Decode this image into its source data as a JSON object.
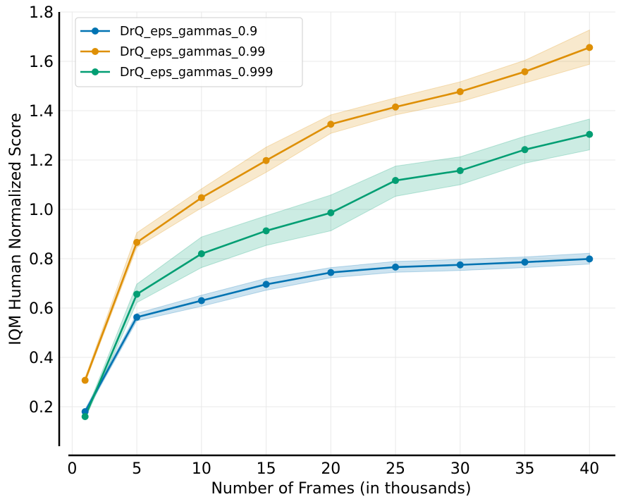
{
  "chart_data": {
    "type": "line",
    "title": "",
    "xlabel": "Number of Frames (in thousands)",
    "ylabel": "IQM Human Normalized Score",
    "xlim": [
      -1,
      42
    ],
    "ylim": [
      0.04,
      1.8
    ],
    "xticks": [
      0,
      5,
      10,
      15,
      20,
      25,
      30,
      35,
      40
    ],
    "yticks": [
      0.2,
      0.4,
      0.6,
      0.8,
      1.0,
      1.2,
      1.4,
      1.6,
      1.8
    ],
    "ytick_labels": [
      "0.2",
      "0.4",
      "0.6",
      "0.8",
      "1.0",
      "1.2",
      "1.4",
      "1.6",
      "1.8"
    ],
    "grid": true,
    "legend_position": "top-left",
    "x": [
      1,
      5,
      10,
      15,
      20,
      25,
      30,
      35,
      40
    ],
    "series": [
      {
        "name": "DrQ_eps_gammas_0.9",
        "color": "#0173b2",
        "values": [
          0.18,
          0.563,
          0.63,
          0.696,
          0.744,
          0.766,
          0.775,
          0.786,
          0.799
        ],
        "lower": [
          0.17,
          0.548,
          0.607,
          0.672,
          0.723,
          0.745,
          0.752,
          0.764,
          0.778
        ],
        "upper": [
          0.19,
          0.578,
          0.652,
          0.72,
          0.764,
          0.789,
          0.797,
          0.807,
          0.822
        ]
      },
      {
        "name": "DrQ_eps_gammas_0.99",
        "color": "#de8f05",
        "values": [
          0.307,
          0.866,
          1.047,
          1.198,
          1.345,
          1.415,
          1.477,
          1.558,
          1.656
        ],
        "lower": [
          0.297,
          0.846,
          1.006,
          1.15,
          1.308,
          1.383,
          1.436,
          1.512,
          1.588
        ],
        "upper": [
          0.317,
          0.905,
          1.083,
          1.252,
          1.383,
          1.452,
          1.517,
          1.604,
          1.727
        ]
      },
      {
        "name": "DrQ_eps_gammas_0.999",
        "color": "#029e73",
        "values": [
          0.16,
          0.656,
          0.82,
          0.913,
          0.986,
          1.117,
          1.157,
          1.242,
          1.304
        ],
        "lower": [
          0.15,
          0.622,
          0.764,
          0.854,
          0.913,
          1.053,
          1.1,
          1.187,
          1.241
        ],
        "upper": [
          0.17,
          0.697,
          0.888,
          0.974,
          1.058,
          1.175,
          1.213,
          1.296,
          1.366
        ]
      }
    ]
  }
}
